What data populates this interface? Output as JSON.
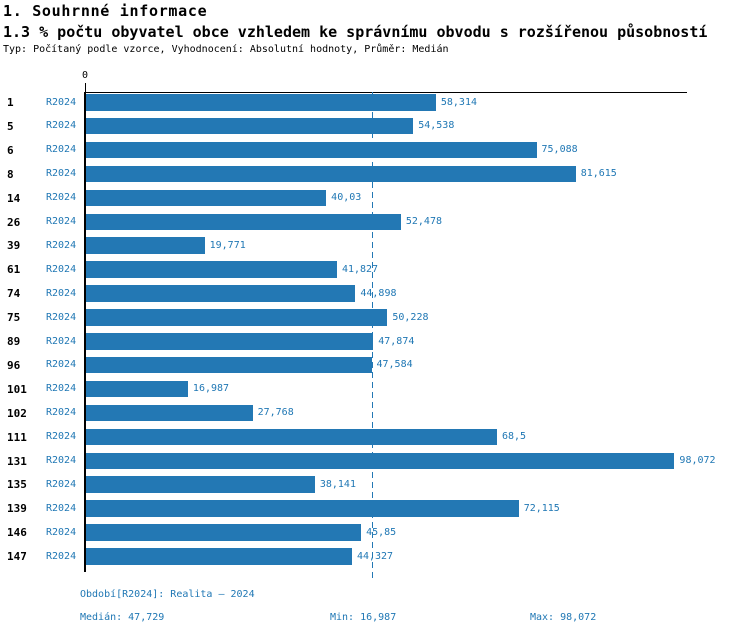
{
  "header": {
    "title": "1. Souhrnné informace",
    "subtitle": "1.3 % počtu obyvatel obce vzhledem ke správnímu obvodu s rozšířenou působností",
    "meta": "Typ: Počítaný podle vzorce, Vyhodnocení: Absolutní hodnoty, Průměr: Medián"
  },
  "colors": {
    "bar": "#2378b4",
    "label_text": "#1f77b4",
    "axis": "#000000"
  },
  "chart_data": {
    "type": "bar",
    "orientation": "horizontal",
    "title": "1.3 % počtu obyvatel obce vzhledem ke správnímu obvodu s rozšířenou působností",
    "series_label": "R2024",
    "categories": [
      "1",
      "5",
      "6",
      "8",
      "14",
      "26",
      "39",
      "61",
      "74",
      "75",
      "89",
      "96",
      "101",
      "102",
      "111",
      "131",
      "135",
      "139",
      "146",
      "147"
    ],
    "values": [
      58.314,
      54.538,
      75.088,
      81.615,
      40.03,
      52.478,
      19.771,
      41.827,
      44.898,
      50.228,
      47.874,
      47.584,
      16.987,
      27.768,
      68.5,
      98.072,
      38.141,
      72.115,
      45.85,
      44.327
    ],
    "value_labels": [
      "58,314",
      "54,538",
      "75,088",
      "81,615",
      "40,03",
      "52,478",
      "19,771",
      "41,827",
      "44,898",
      "50,228",
      "47,874",
      "47,584",
      "16,987",
      "27,768",
      "68,5",
      "98,072",
      "38,141",
      "72,115",
      "45,85",
      "44,327"
    ],
    "xlim": [
      0,
      100
    ],
    "x_tick_labels": [
      "0"
    ],
    "median_value": 47.729,
    "min_value": 16.987,
    "max_value": 98.072,
    "grid": false,
    "legend_position": "none"
  },
  "footer": {
    "period": "Období[R2024]: Realita – 2024",
    "median": "Medián: 47,729",
    "min": "Min: 16,987",
    "max": "Max: 98,072"
  }
}
